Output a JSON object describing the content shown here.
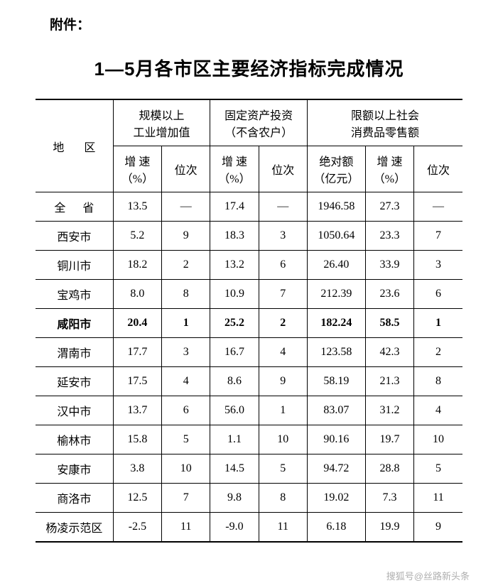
{
  "attachment_label": "附件：",
  "title": "1—5月各市区主要经济指标完成情况",
  "headers": {
    "region": "地  区",
    "group1": "规模以上\n工业增加值",
    "group2": "固定资产投资\n（不含农户）",
    "group3": "限额以上社会\n消费品零售额",
    "growth": "增 速\n（%）",
    "rank": "位次",
    "absolute": "绝对额\n（亿元）"
  },
  "rows": [
    {
      "region": "全  省",
      "g1": "13.5",
      "r1": "—",
      "g2": "17.4",
      "r2": "—",
      "abs": "1946.58",
      "g3": "27.3",
      "r3": "—",
      "bold": false,
      "spaced": true
    },
    {
      "region": "西安市",
      "g1": "5.2",
      "r1": "9",
      "g2": "18.3",
      "r2": "3",
      "abs": "1050.64",
      "g3": "23.3",
      "r3": "7",
      "bold": false,
      "spaced": false
    },
    {
      "region": "铜川市",
      "g1": "18.2",
      "r1": "2",
      "g2": "13.2",
      "r2": "6",
      "abs": "26.40",
      "g3": "33.9",
      "r3": "3",
      "bold": false,
      "spaced": false
    },
    {
      "region": "宝鸡市",
      "g1": "8.0",
      "r1": "8",
      "g2": "10.9",
      "r2": "7",
      "abs": "212.39",
      "g3": "23.6",
      "r3": "6",
      "bold": false,
      "spaced": false
    },
    {
      "region": "咸阳市",
      "g1": "20.4",
      "r1": "1",
      "g2": "25.2",
      "r2": "2",
      "abs": "182.24",
      "g3": "58.5",
      "r3": "1",
      "bold": true,
      "spaced": false
    },
    {
      "region": "渭南市",
      "g1": "17.7",
      "r1": "3",
      "g2": "16.7",
      "r2": "4",
      "abs": "123.58",
      "g3": "42.3",
      "r3": "2",
      "bold": false,
      "spaced": false
    },
    {
      "region": "延安市",
      "g1": "17.5",
      "r1": "4",
      "g2": "8.6",
      "r2": "9",
      "abs": "58.19",
      "g3": "21.3",
      "r3": "8",
      "bold": false,
      "spaced": false
    },
    {
      "region": "汉中市",
      "g1": "13.7",
      "r1": "6",
      "g2": "56.0",
      "r2": "1",
      "abs": "83.07",
      "g3": "31.2",
      "r3": "4",
      "bold": false,
      "spaced": false
    },
    {
      "region": "榆林市",
      "g1": "15.8",
      "r1": "5",
      "g2": "1.1",
      "r2": "10",
      "abs": "90.16",
      "g3": "19.7",
      "r3": "10",
      "bold": false,
      "spaced": false
    },
    {
      "region": "安康市",
      "g1": "3.8",
      "r1": "10",
      "g2": "14.5",
      "r2": "5",
      "abs": "94.72",
      "g3": "28.8",
      "r3": "5",
      "bold": false,
      "spaced": false
    },
    {
      "region": "商洛市",
      "g1": "12.5",
      "r1": "7",
      "g2": "9.8",
      "r2": "8",
      "abs": "19.02",
      "g3": "7.3",
      "r3": "11",
      "bold": false,
      "spaced": false
    },
    {
      "region": "杨凌示范区",
      "g1": "-2.5",
      "r1": "11",
      "g2": "-9.0",
      "r2": "11",
      "abs": "6.18",
      "g3": "19.9",
      "r3": "9",
      "bold": false,
      "spaced": false
    }
  ],
  "watermark": "搜狐号@丝路新头条",
  "colors": {
    "text": "#000000",
    "background": "#ffffff",
    "border": "#000000"
  }
}
